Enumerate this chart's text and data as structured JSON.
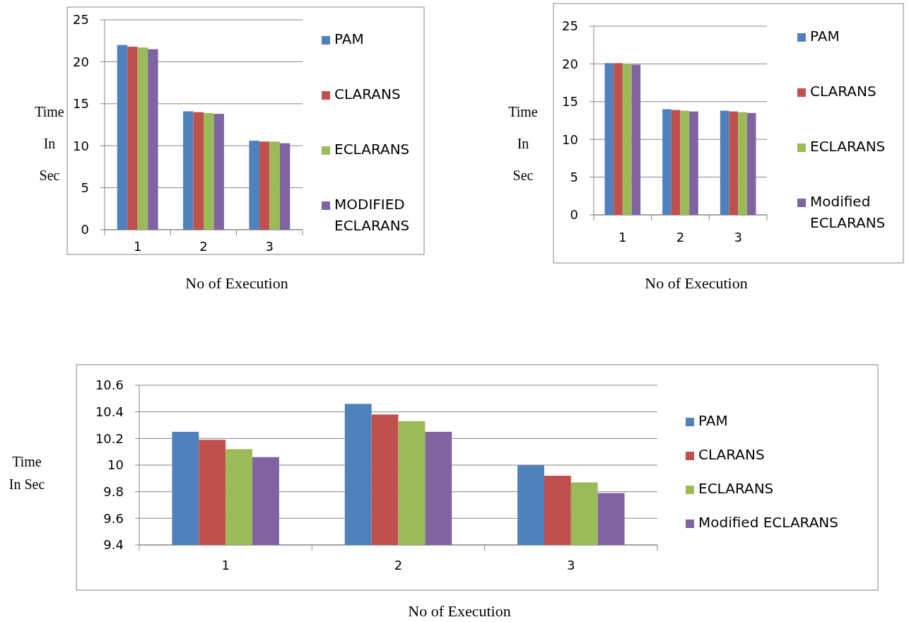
{
  "chart_data": [
    {
      "type": "bar",
      "xlabel": "No of Execution",
      "ylabel": "Time\nIn\nSec",
      "categories": [
        "1",
        "2",
        "3"
      ],
      "ylim": [
        0,
        25
      ],
      "yticks": [
        0,
        5,
        10,
        15,
        20,
        25
      ],
      "grid": "y",
      "legend": "right",
      "series": [
        {
          "name": "PAM",
          "color": "#4f81bd",
          "values": [
            22,
            14.1,
            10.6
          ]
        },
        {
          "name": "CLARANS",
          "color": "#c0504d",
          "values": [
            21.8,
            14,
            10.5
          ]
        },
        {
          "name": "ECLARANS",
          "color": "#9bbb59",
          "values": [
            21.7,
            13.9,
            10.5
          ]
        },
        {
          "name": "MODIFIED ECLARANS",
          "color": "#8064a2",
          "values": [
            21.5,
            13.8,
            10.3
          ]
        }
      ]
    },
    {
      "type": "bar",
      "xlabel": "No of Execution",
      "ylabel": "Time\nIn\nSec",
      "categories": [
        "1",
        "2",
        "3"
      ],
      "ylim": [
        0,
        25
      ],
      "yticks": [
        0,
        5,
        10,
        15,
        20,
        25
      ],
      "grid": "y",
      "legend": "right",
      "series": [
        {
          "name": "PAM",
          "color": "#4f81bd",
          "values": [
            20.1,
            14,
            13.8
          ]
        },
        {
          "name": "CLARANS",
          "color": "#c0504d",
          "values": [
            20.1,
            13.9,
            13.7
          ]
        },
        {
          "name": "ECLARANS",
          "color": "#9bbb59",
          "values": [
            20,
            13.8,
            13.6
          ]
        },
        {
          "name": "Modified ECLARANS",
          "color": "#8064a2",
          "values": [
            19.9,
            13.7,
            13.5
          ]
        }
      ]
    },
    {
      "type": "bar",
      "xlabel": "No of Execution",
      "ylabel": "Time\nIn Sec",
      "categories": [
        "1",
        "2",
        "3"
      ],
      "ylim": [
        9.4,
        10.6
      ],
      "yticks": [
        9.4,
        9.6,
        9.8,
        10,
        10.2,
        10.4,
        10.6
      ],
      "grid": "y",
      "legend": "right",
      "series": [
        {
          "name": "PAM",
          "color": "#4f81bd",
          "values": [
            10.25,
            10.46,
            10
          ]
        },
        {
          "name": "CLARANS",
          "color": "#c0504d",
          "values": [
            10.19,
            10.38,
            9.92
          ]
        },
        {
          "name": "ECLARANS",
          "color": "#9bbb59",
          "values": [
            10.12,
            10.33,
            9.87
          ]
        },
        {
          "name": "Modified ECLARANS",
          "color": "#8064a2",
          "values": [
            10.06,
            10.25,
            9.79
          ]
        }
      ]
    }
  ]
}
